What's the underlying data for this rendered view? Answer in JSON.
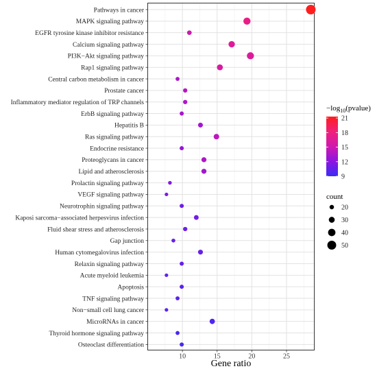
{
  "chart_data": {
    "type": "scatter",
    "xlabel": "Gene ratio",
    "ylabel": "",
    "xlim": [
      5,
      29
    ],
    "xticks": [
      10,
      15,
      20,
      25
    ],
    "grid": true,
    "categories": [
      "Pathways in cancer",
      "MAPK signaling pathway",
      "EGFR tyrosine kinase inhibitor resistance",
      "Calcium signaling pathway",
      "PI3K−Akt signaling pathway",
      "Rap1 signaling pathway",
      "Central carbon metabolism in cancer",
      "Prostate cancer",
      "Inflammatory mediator regulation of TRP channels",
      "ErbB signaling pathway",
      "Hepatitis B",
      "Ras signaling pathway",
      "Endocrine resistance",
      "Proteoglycans in cancer",
      "Lipid and atherosclerosis",
      "Prolactin signaling pathway",
      "VEGF signaling pathway",
      "Neurotrophin signaling pathway",
      "Kaposi sarcoma−associated herpesvirus infection",
      "Fluid shear stress and atherosclerosis",
      "Gap junction",
      "Human cytomegalovirus infection",
      "Relaxin signaling pathway",
      "Acute myeloid leukemia",
      "Apoptosis",
      "TNF signaling pathway",
      "Non−small cell lung cancer",
      "MicroRNAs in cancer",
      "Thyroid hormone signaling pathway",
      "Osteoclast differentiation"
    ],
    "x": [
      28.5,
      19.3,
      11.0,
      17.1,
      19.8,
      15.4,
      9.3,
      10.4,
      10.4,
      9.9,
      12.6,
      14.9,
      9.9,
      13.1,
      13.1,
      8.2,
      7.7,
      9.9,
      12.0,
      10.4,
      8.7,
      12.6,
      9.9,
      7.7,
      9.9,
      9.3,
      7.7,
      14.3,
      9.3,
      9.9
    ],
    "count": [
      55,
      38,
      21,
      33,
      38,
      30,
      17,
      19,
      19,
      18,
      23,
      27,
      18,
      24,
      24,
      15,
      14,
      18,
      22,
      19,
      16,
      23,
      18,
      14,
      18,
      17,
      14,
      26,
      17,
      18
    ],
    "neglog10_pvalue": [
      21.3,
      17.5,
      15.0,
      16.5,
      16.3,
      16.0,
      13.6,
      13.9,
      13.6,
      13.3,
      13.2,
      14.3,
      12.5,
      13.6,
      13.2,
      11.8,
      11.5,
      11.0,
      11.1,
      10.9,
      10.8,
      10.6,
      10.6,
      10.5,
      10.2,
      10.2,
      10.2,
      9.8,
      9.5,
      9.5
    ],
    "color_legend": {
      "title_prefix": "−log",
      "title_sub": "10",
      "title_suffix": "(pvalue)",
      "ticks": [
        21,
        18,
        15,
        12,
        9
      ],
      "range": [
        9,
        21.3
      ],
      "colors": [
        "#3B2BF5",
        "#8B16E0",
        "#D018B0",
        "#F0207A",
        "#FF1E1E"
      ]
    },
    "size_legend": {
      "title": "count",
      "values": [
        20,
        30,
        40,
        50
      ]
    }
  }
}
